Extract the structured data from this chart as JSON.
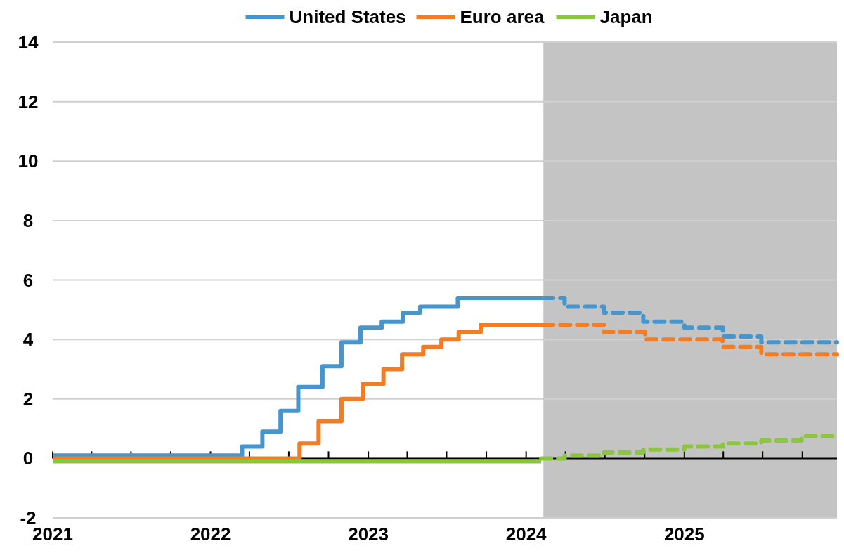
{
  "chart_data": {
    "type": "step",
    "xlim": [
      "2021-01-01",
      "2025-12-20"
    ],
    "ylim": [
      -2,
      14
    ],
    "yticks": [
      -2,
      0,
      2,
      4,
      6,
      8,
      10,
      12,
      14
    ],
    "xticks": [
      {
        "value": "2021-01-01",
        "label": "2021"
      },
      {
        "value": "2021-04-01",
        "label": null
      },
      {
        "value": "2021-07-01",
        "label": null
      },
      {
        "value": "2021-10-01",
        "label": null
      },
      {
        "value": "2022-01-01",
        "label": "2022"
      },
      {
        "value": "2022-04-01",
        "label": null
      },
      {
        "value": "2022-07-01",
        "label": null
      },
      {
        "value": "2022-10-01",
        "label": null
      },
      {
        "value": "2023-01-01",
        "label": "2023"
      },
      {
        "value": "2023-04-01",
        "label": null
      },
      {
        "value": "2023-07-01",
        "label": null
      },
      {
        "value": "2023-10-01",
        "label": null
      },
      {
        "value": "2024-01-01",
        "label": "2024"
      },
      {
        "value": "2024-04-01",
        "label": null
      },
      {
        "value": "2024-07-01",
        "label": null
      },
      {
        "value": "2024-10-01",
        "label": null
      },
      {
        "value": "2025-01-01",
        "label": "2025"
      },
      {
        "value": "2025-04-01",
        "label": null
      },
      {
        "value": "2025-07-01",
        "label": null
      },
      {
        "value": "2025-10-01",
        "label": null
      }
    ],
    "grid": "y",
    "legend": "top",
    "bands": [
      {
        "axis": "x",
        "from": "2024-02-10",
        "to": "2025-12-20",
        "color": "#c4c4c4"
      }
    ],
    "series": [
      {
        "name": "United States",
        "color": "#4596cf",
        "line_style": "solid",
        "x": [
          "2021-01-01",
          "2022-03-15",
          "2022-05-01",
          "2022-06-12",
          "2022-07-23",
          "2022-09-17",
          "2022-10-31",
          "2022-12-14",
          "2023-02-01",
          "2023-03-22",
          "2023-05-01",
          "2023-07-27",
          "2024-02-10"
        ],
        "values": [
          0.1,
          0.4,
          0.9,
          1.6,
          2.4,
          3.1,
          3.9,
          4.4,
          4.6,
          4.9,
          5.1,
          5.4,
          5.4
        ]
      },
      {
        "name": "Euro area",
        "color": "#f47d24",
        "line_style": "solid",
        "x": [
          "2021-01-01",
          "2022-07-26",
          "2022-09-08",
          "2022-10-31",
          "2022-12-19",
          "2023-02-05",
          "2023-03-20",
          "2023-05-08",
          "2023-06-19",
          "2023-07-29",
          "2023-09-18",
          "2024-02-10"
        ],
        "values": [
          0,
          0.5,
          1.25,
          2,
          2.5,
          3,
          3.5,
          3.75,
          4,
          4.25,
          4.5,
          4.5
        ]
      },
      {
        "name": "Japan",
        "color": "#8cc63f",
        "line_style": "solid",
        "x": [
          "2021-01-01",
          "2024-02-05"
        ],
        "values": [
          -0.1,
          -0.1
        ]
      },
      {
        "color": "#4596cf",
        "line_style": "dashed",
        "x": [
          "2024-02-10",
          "2024-03-30",
          "2024-06-29",
          "2024-09-28",
          "2025-01-01",
          "2025-03-31",
          "2025-06-28",
          "2025-12-20"
        ],
        "values": [
          5.4,
          5.1,
          4.9,
          4.6,
          4.4,
          4.1,
          3.9,
          3.9
        ]
      },
      {
        "color": "#f47d24",
        "line_style": "dashed",
        "x": [
          "2024-02-10",
          "2024-06-29",
          "2024-10-02",
          "2025-03-30",
          "2025-06-28",
          "2025-12-20"
        ],
        "values": [
          4.5,
          4.25,
          4,
          3.75,
          3.5,
          3.5
        ]
      },
      {
        "color": "#8cc63f",
        "line_style": "dashed",
        "x": [
          "2024-02-05",
          "2024-03-30",
          "2024-06-29",
          "2024-09-28",
          "2025-01-01",
          "2025-03-31",
          "2025-06-28",
          "2025-09-29",
          "2025-12-20"
        ],
        "values": [
          0,
          0.1,
          0.2,
          0.3,
          0.4,
          0.5,
          0.6,
          0.75,
          0.75
        ]
      }
    ]
  }
}
